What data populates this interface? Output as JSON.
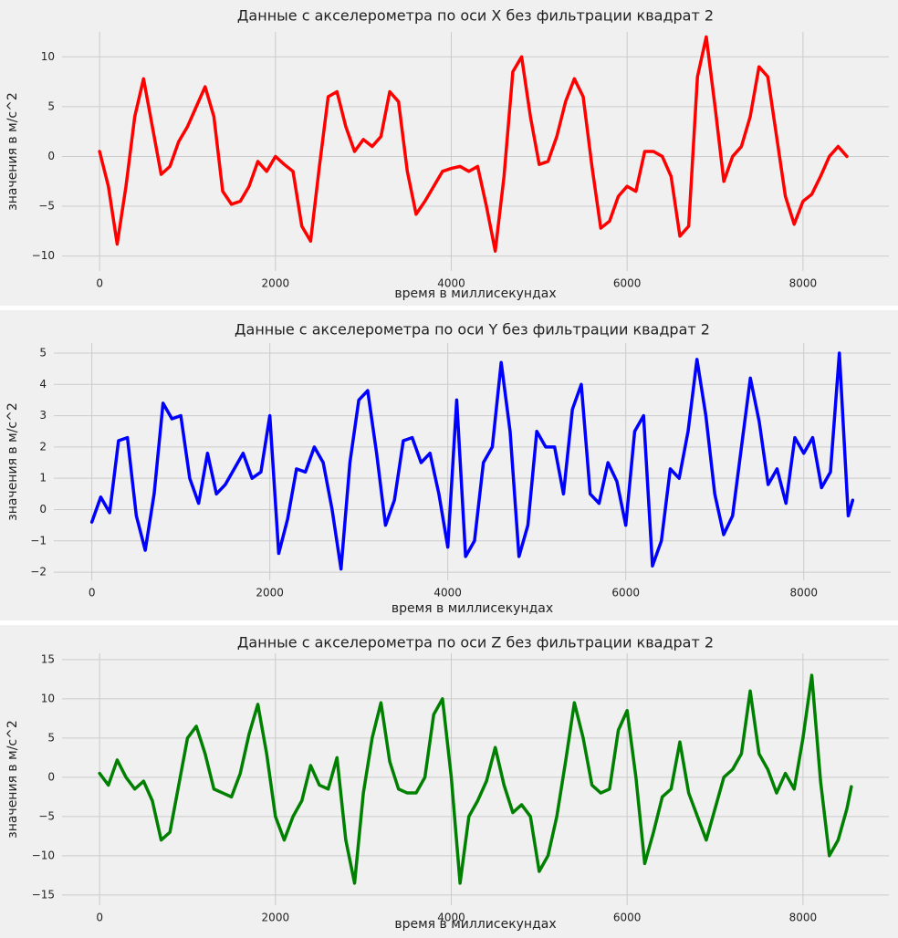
{
  "chart_data": [
    {
      "type": "line",
      "title": "Данные с акселерометра по оси X без фильтрации квадрат 2",
      "xlabel": "время в миллисекундах",
      "ylabel": "значения в м/с^2",
      "color": "red",
      "grid": true,
      "x": [
        0,
        100,
        200,
        300,
        400,
        500,
        600,
        700,
        800,
        900,
        1000,
        1100,
        1200,
        1300,
        1400,
        1500,
        1600,
        1700,
        1800,
        1900,
        2000,
        2100,
        2200,
        2300,
        2400,
        2500,
        2600,
        2700,
        2800,
        2900,
        3000,
        3100,
        3200,
        3300,
        3400,
        3500,
        3600,
        3700,
        3800,
        3900,
        4000,
        4100,
        4200,
        4300,
        4400,
        4500,
        4600,
        4700,
        4800,
        4900,
        5000,
        5100,
        5200,
        5300,
        5400,
        5500,
        5600,
        5700,
        5800,
        5900,
        6000,
        6100,
        6200,
        6300,
        6400,
        6500,
        6600,
        6700,
        6800,
        6900,
        7000,
        7100,
        7200,
        7300,
        7400,
        7500,
        7600,
        7700,
        7800,
        7900,
        8000,
        8100,
        8200,
        8300,
        8400,
        8500
      ],
      "values": [
        0.5,
        -3,
        -8.8,
        -3,
        4,
        7.8,
        3,
        -1.8,
        -1,
        1.5,
        3,
        5,
        7,
        4,
        -3.5,
        -4.8,
        -4.5,
        -3,
        -0.5,
        -1.5,
        0,
        -0.8,
        -1.5,
        -7,
        -8.5,
        -1,
        6,
        6.5,
        3,
        0.5,
        1.7,
        1,
        2,
        6.5,
        5.5,
        -1.5,
        -5.8,
        -4.5,
        -3,
        -1.5,
        -1.2,
        -1,
        -1.5,
        -1,
        -5,
        -9.5,
        -2,
        8.5,
        10,
        4,
        -0.8,
        -0.5,
        2,
        5.5,
        7.8,
        6,
        -1,
        -7.2,
        -6.5,
        -4,
        -3,
        -3.5,
        0.5,
        0.5,
        0,
        -2,
        -8,
        -7,
        8,
        12,
        5,
        -2.5,
        0,
        1,
        4,
        9,
        8,
        2,
        -4,
        -6.8,
        -4.5,
        -3.8,
        -2,
        0,
        1,
        0
      ],
      "xlim": [
        -427,
        8977
      ],
      "ylim": [
        -11.5,
        12.5
      ],
      "xticks": [
        0,
        2000,
        4000,
        6000,
        8000
      ],
      "yticks": [
        {
          "value": -10,
          "label": "−10"
        },
        {
          "value": -5,
          "label": "−5"
        },
        0,
        5,
        10
      ]
    },
    {
      "type": "line",
      "title": "Данные с акселерометра по оси Y без фильтрации квадрат 2",
      "xlabel": "время в миллисекундах",
      "ylabel": "значения в м/с^2",
      "color": "blue",
      "grid": true,
      "x": [
        0,
        100,
        200,
        300,
        400,
        500,
        600,
        700,
        800,
        900,
        1000,
        1100,
        1200,
        1300,
        1400,
        1500,
        1600,
        1700,
        1800,
        1900,
        2000,
        2100,
        2200,
        2300,
        2400,
        2500,
        2600,
        2700,
        2800,
        2900,
        3000,
        3100,
        3200,
        3300,
        3400,
        3500,
        3600,
        3700,
        3800,
        3900,
        4000,
        4100,
        4200,
        4300,
        4400,
        4500,
        4600,
        4700,
        4800,
        4900,
        5000,
        5100,
        5200,
        5300,
        5400,
        5500,
        5600,
        5700,
        5800,
        5900,
        6000,
        6100,
        6200,
        6300,
        6400,
        6500,
        6600,
        6700,
        6800,
        6900,
        7000,
        7100,
        7200,
        7300,
        7400,
        7500,
        7600,
        7700,
        7800,
        7900,
        8000,
        8100,
        8200,
        8300,
        8400,
        8500,
        8550
      ],
      "values": [
        -0.4,
        0.4,
        -0.1,
        2.2,
        2.3,
        -0.2,
        -1.3,
        0.5,
        3.4,
        2.9,
        3,
        1,
        0.2,
        1.8,
        0.5,
        0.8,
        1.3,
        1.8,
        1,
        1.2,
        3,
        -1.4,
        -0.3,
        1.3,
        1.2,
        2,
        1.5,
        0,
        -1.9,
        1.5,
        3.5,
        3.8,
        1.8,
        -0.5,
        0.3,
        2.2,
        2.3,
        1.5,
        1.8,
        0.5,
        -1.2,
        3.5,
        -1.5,
        -1,
        1.5,
        2,
        4.7,
        2.5,
        -1.5,
        -0.5,
        2.5,
        2,
        2,
        0.5,
        3.2,
        4,
        0.5,
        0.2,
        1.5,
        0.9,
        -0.5,
        2.5,
        3,
        -1.8,
        -1,
        1.3,
        1,
        2.5,
        4.8,
        3,
        0.5,
        -0.8,
        -0.2,
        2,
        4.2,
        2.8,
        0.8,
        1.3,
        0.2,
        2.3,
        1.8,
        2.3,
        0.7,
        1.2,
        5,
        -0.2,
        0.3
      ],
      "xlim": [
        -427,
        8977
      ],
      "ylim": [
        -2.26,
        5.32
      ],
      "xticks": [
        0,
        2000,
        4000,
        6000,
        8000
      ],
      "yticks": [
        {
          "value": -2,
          "label": "−2"
        },
        {
          "value": -1,
          "label": "−1"
        },
        0,
        1,
        2,
        3,
        4,
        5
      ]
    },
    {
      "type": "line",
      "title": "Данные с акселерометра по оси Z без фильтрации квадрат 2",
      "xlabel": "время в миллисекундах",
      "ylabel": "значения в м/с^2",
      "color": "green",
      "grid": true,
      "x": [
        0,
        100,
        200,
        300,
        400,
        500,
        600,
        700,
        800,
        900,
        1000,
        1100,
        1200,
        1300,
        1400,
        1500,
        1600,
        1700,
        1800,
        1900,
        2000,
        2100,
        2200,
        2300,
        2400,
        2500,
        2600,
        2700,
        2800,
        2900,
        3000,
        3100,
        3200,
        3300,
        3400,
        3500,
        3600,
        3700,
        3800,
        3900,
        4000,
        4100,
        4200,
        4300,
        4400,
        4500,
        4600,
        4700,
        4800,
        4900,
        5000,
        5100,
        5200,
        5300,
        5400,
        5500,
        5600,
        5700,
        5800,
        5900,
        6000,
        6100,
        6200,
        6300,
        6400,
        6500,
        6600,
        6700,
        6800,
        6900,
        7000,
        7100,
        7200,
        7300,
        7400,
        7500,
        7600,
        7700,
        7800,
        7900,
        8000,
        8100,
        8200,
        8300,
        8400,
        8500,
        8550
      ],
      "values": [
        0.5,
        -1,
        2.2,
        0,
        -1.5,
        -0.5,
        -3,
        -8,
        -7,
        -1,
        5,
        6.5,
        3,
        -1.5,
        -2,
        -2.5,
        0.5,
        5.5,
        9.3,
        3,
        -5,
        -8,
        -5,
        -3,
        1.5,
        -1,
        -1.5,
        2.5,
        -8,
        -13.5,
        -2,
        5,
        9.5,
        2,
        -1.5,
        -2,
        -2,
        0,
        8,
        10,
        0,
        -13.5,
        -5,
        -3,
        -0.5,
        3.8,
        -1,
        -4.5,
        -3.5,
        -5,
        -12,
        -10,
        -5,
        2,
        9.5,
        5,
        -1,
        -2,
        -1.5,
        6,
        8.5,
        0,
        -11,
        -7,
        -2.5,
        -1.5,
        4.5,
        -2,
        -5,
        -8,
        -4,
        0,
        1,
        3,
        11,
        3,
        1,
        -2,
        0.5,
        -1.5,
        5,
        13,
        -0.5,
        -10,
        -8,
        -4,
        -1.2
      ],
      "xlim": [
        -427,
        8977
      ],
      "ylim": [
        -16.3,
        15.8
      ],
      "xticks": [
        0,
        2000,
        4000,
        6000,
        8000
      ],
      "yticks": [
        {
          "value": -15,
          "label": "−15"
        },
        {
          "value": -10,
          "label": "−10"
        },
        {
          "value": -5,
          "label": "−5"
        },
        0,
        5,
        10,
        15
      ]
    }
  ]
}
